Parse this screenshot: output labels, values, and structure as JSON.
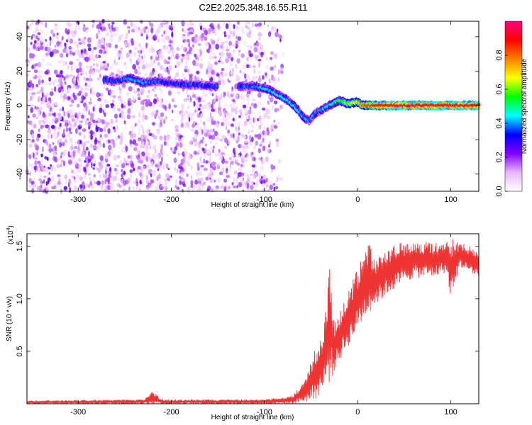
{
  "figure_title": "C2E2.2025.348.16.55.R11",
  "chart_data": [
    {
      "type": "heatmap",
      "title": "C2E2.2025.348.16.55.R11",
      "xlabel": "Height of straight line (km)",
      "ylabel": "Frequency (Hz)",
      "xlim": [
        -355,
        130
      ],
      "ylim": [
        -50,
        49
      ],
      "x_ticks": [
        -300,
        -200,
        -100,
        0,
        100
      ],
      "y_ticks": [
        -40,
        -20,
        0,
        20,
        40
      ],
      "colorbar": {
        "label": "Normalized spectral amplitude",
        "range": [
          0,
          1
        ],
        "ticks": [
          "0.0",
          "0.2",
          "0.4",
          "0.6",
          "0.8"
        ],
        "tick_values": [
          0,
          0.2,
          0.4,
          0.6,
          0.8
        ],
        "colors": [
          "#ffffff",
          "#e8b8f8",
          "#8000ff",
          "#0000ff",
          "#00ffff",
          "#00ff00",
          "#ffff00",
          "#ff8000",
          "#ff0000",
          "#ff0080"
        ]
      },
      "noise_region": {
        "x_range": [
          -355,
          -80
        ],
        "amplitude_range": [
          0.05,
          0.25
        ]
      },
      "ridge": {
        "x": [
          -272,
          -260,
          -245,
          -230,
          -215,
          -200,
          -185,
          -170,
          -155,
          -148,
          -125,
          -110,
          -95,
          -85,
          -75,
          -65,
          -58,
          -52,
          -48,
          -40,
          -30,
          -20,
          -10,
          0,
          5,
          20,
          50,
          80,
          100,
          130
        ],
        "freq": [
          15,
          14,
          16,
          13,
          14,
          13,
          12,
          12,
          11,
          11,
          11,
          11,
          9,
          6,
          3,
          -2,
          -7,
          -9,
          -6,
          -3,
          0,
          3,
          1,
          2,
          0,
          0,
          0,
          0,
          0,
          0
        ],
        "amplitude": [
          0.35,
          0.35,
          0.4,
          0.4,
          0.35,
          0.35,
          0.35,
          0.35,
          0.35,
          0.35,
          0.35,
          0.4,
          0.45,
          0.45,
          0.45,
          0.45,
          0.4,
          0.4,
          0.4,
          0.4,
          0.45,
          0.55,
          0.6,
          0.7,
          0.8,
          0.9,
          0.95,
          0.95,
          0.95,
          0.95
        ]
      }
    },
    {
      "type": "line",
      "xlabel": "Height of straight line (km)",
      "ylabel": "SNR (10 * v/v)",
      "y_exponent_label": "(x10",
      "y_exponent_power": "4",
      "y_exponent_close": ")",
      "xlim": [
        -355,
        130
      ],
      "ylim": [
        0,
        1.62
      ],
      "x_ticks": [
        -300,
        -200,
        -100,
        0,
        100
      ],
      "y_ticks": [
        0.5,
        1.0,
        1.5
      ],
      "y_tick_labels": [
        "0.5",
        "1.0",
        "1.5"
      ],
      "color": "#ee3333",
      "envelope": {
        "x": [
          -355,
          -230,
          -220,
          -210,
          -100,
          -70,
          -55,
          -45,
          -40,
          -35,
          -30,
          -25,
          -20,
          -10,
          0,
          10,
          20,
          40,
          60,
          80,
          95,
          100,
          110,
          120,
          130
        ],
        "upper": [
          0.03,
          0.04,
          0.12,
          0.04,
          0.04,
          0.08,
          0.25,
          0.55,
          0.6,
          0.85,
          1.35,
          0.8,
          0.9,
          1.1,
          1.3,
          1.55,
          1.4,
          1.52,
          1.55,
          1.55,
          1.55,
          1.58,
          1.55,
          1.5,
          1.45
        ],
        "lower": [
          0.0,
          0.0,
          0.0,
          0.0,
          0.0,
          0.0,
          0.02,
          0.05,
          0.1,
          0.15,
          0.2,
          0.3,
          0.4,
          0.55,
          0.7,
          0.85,
          0.95,
          1.1,
          1.2,
          1.2,
          1.25,
          1.0,
          1.3,
          1.25,
          1.2
        ]
      }
    }
  ]
}
